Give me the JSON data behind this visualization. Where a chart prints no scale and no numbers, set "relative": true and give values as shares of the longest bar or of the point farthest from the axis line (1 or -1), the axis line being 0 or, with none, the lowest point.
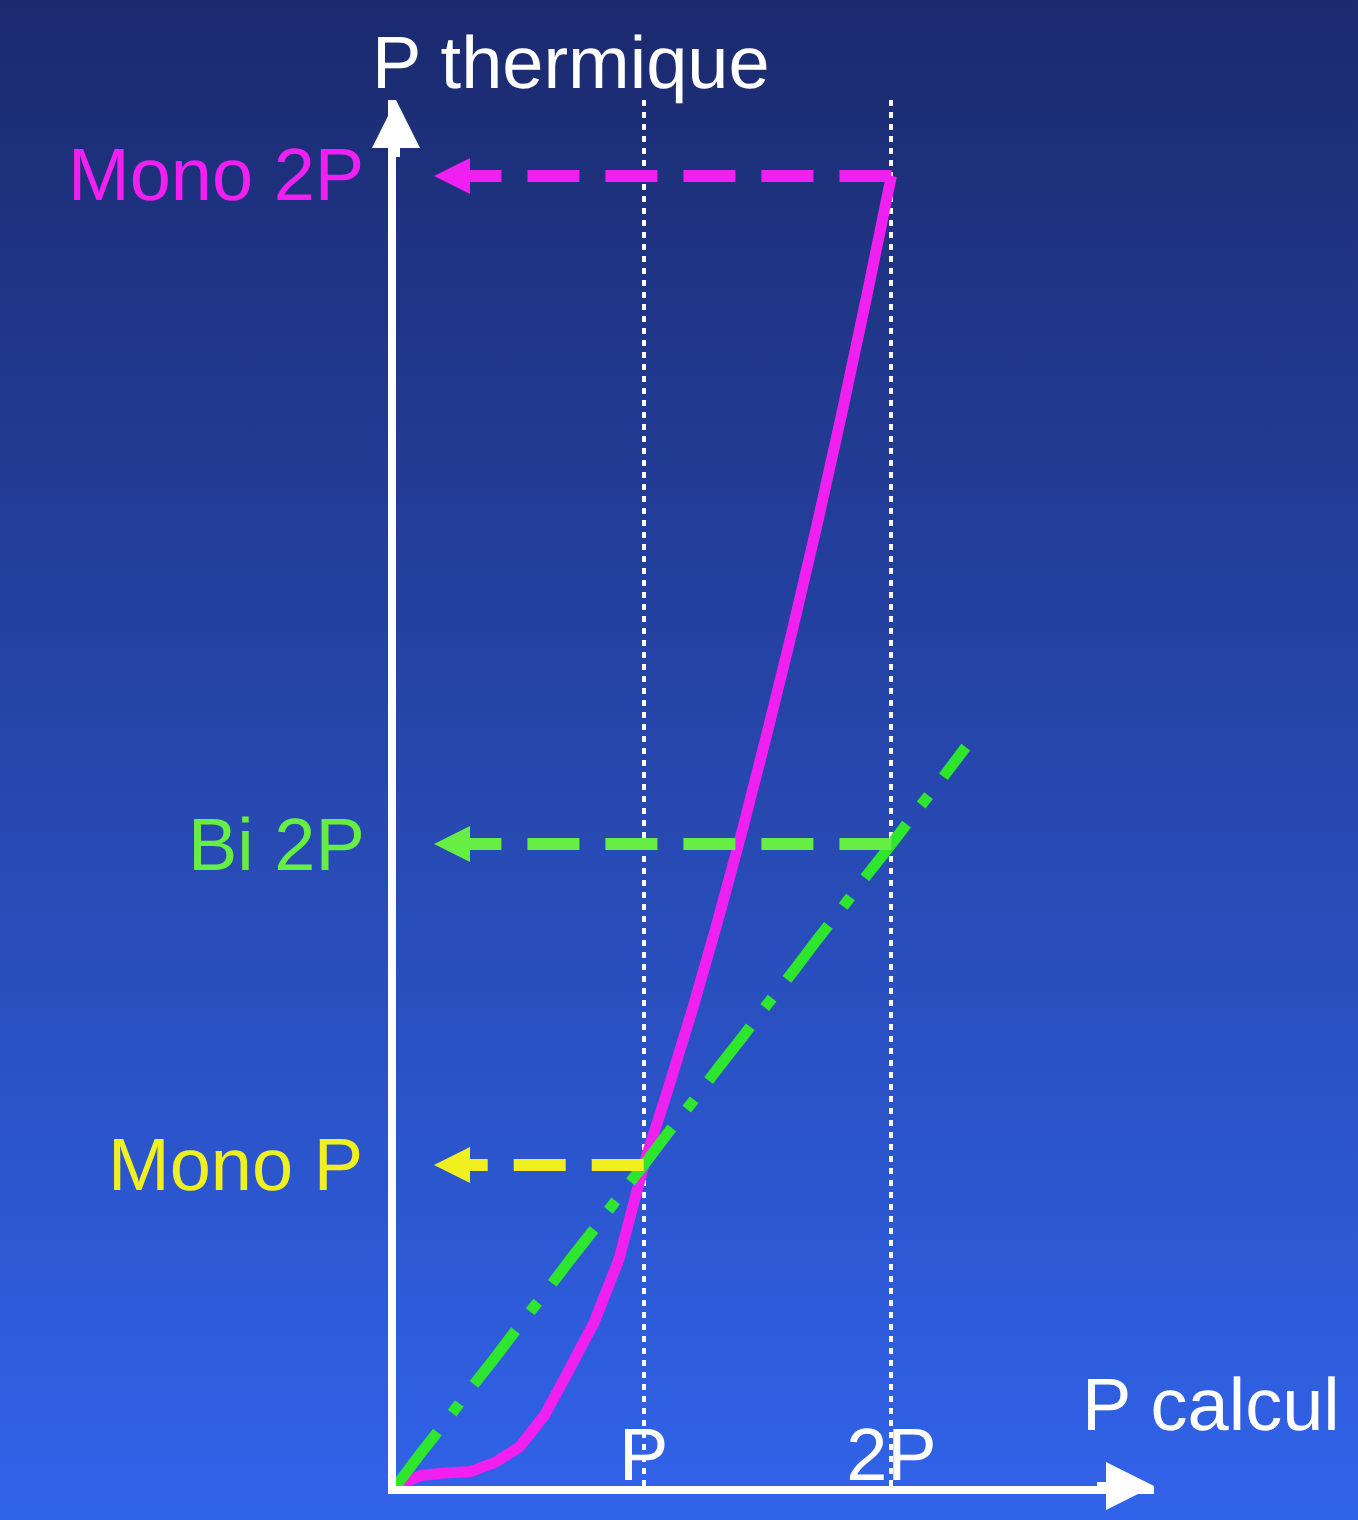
{
  "chart_data": {
    "type": "line",
    "relative": true,
    "ylabel": "P thermique",
    "xlabel": "P calcul",
    "grid": "x",
    "categories": [
      null,
      null,
      null,
      null,
      null,
      null,
      null,
      null,
      null,
      null,
      "P",
      null,
      null,
      null,
      null,
      null,
      null,
      null,
      null,
      null,
      "2P",
      null,
      null,
      null,
      null,
      null,
      null,
      null,
      null,
      null,
      null
    ],
    "series": [
      {
        "color": "#f020f0",
        "line_style": "solid",
        "values": [
          0,
          0.008,
          0.01,
          0.011,
          0.018,
          0.03,
          0.054,
          0.089,
          0.125,
          0.173,
          0.245,
          0.304,
          0.366,
          0.432,
          0.502,
          0.576,
          0.653,
          0.734,
          0.819,
          0.908,
          1.0,
          null,
          null,
          null,
          null,
          null,
          null,
          null,
          null,
          null,
          null
        ]
      },
      {
        "color": "#2ee62e",
        "line_style": "dashdot",
        "values": [
          0,
          0.025,
          0.049,
          0.074,
          0.098,
          0.123,
          0.147,
          0.172,
          0.196,
          0.221,
          0.245,
          0.27,
          0.294,
          0.319,
          0.343,
          0.368,
          0.392,
          0.417,
          0.441,
          0.466,
          0.49,
          0.515,
          0.539,
          0.564,
          null,
          null,
          null,
          null,
          null,
          null,
          null
        ]
      }
    ],
    "ref_lines": [
      {
        "axis": "y",
        "value": 1.0,
        "label": "Mono 2P",
        "color": "#f020f0",
        "line_style": "dashed"
      },
      {
        "axis": "y",
        "value": 0.49,
        "label": "Bi 2P",
        "color": "#66ee44",
        "line_style": "dashed"
      },
      {
        "axis": "y",
        "value": 0.245,
        "label": "Mono P",
        "color": "#f0f020",
        "line_style": "dashed"
      }
    ]
  }
}
